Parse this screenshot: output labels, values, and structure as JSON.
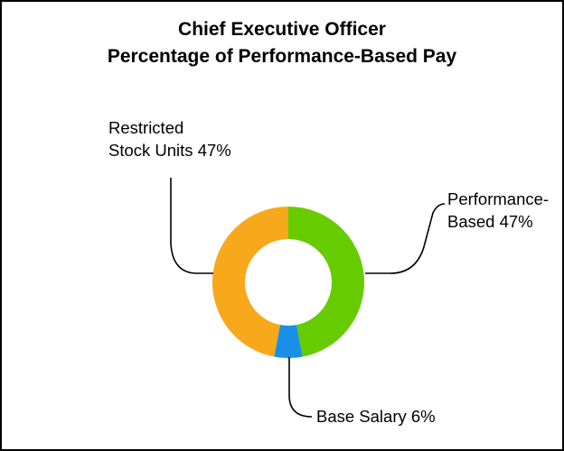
{
  "chart_data": {
    "type": "pie",
    "title": "Chief Executive Officer",
    "subtitle": "Percentage of Performance-Based Pay",
    "slices": [
      {
        "label_lines": [
          "Performance-",
          "Based 47%"
        ],
        "value": 47,
        "color": "#66cc00"
      },
      {
        "label_lines": [
          "Base Salary 6%"
        ],
        "value": 6,
        "color": "#1a8fe8"
      },
      {
        "label_lines": [
          "Restricted",
          "Stock Units 47%"
        ],
        "value": 47,
        "color": "#f7a81b"
      }
    ]
  }
}
